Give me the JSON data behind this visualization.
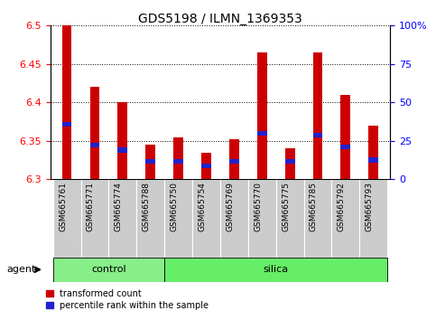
{
  "title": "GDS5198 / ILMN_1369353",
  "samples": [
    "GSM665761",
    "GSM665771",
    "GSM665774",
    "GSM665788",
    "GSM665750",
    "GSM665754",
    "GSM665769",
    "GSM665770",
    "GSM665775",
    "GSM665785",
    "GSM665792",
    "GSM665793"
  ],
  "groups": [
    "control",
    "control",
    "control",
    "control",
    "silica",
    "silica",
    "silica",
    "silica",
    "silica",
    "silica",
    "silica",
    "silica"
  ],
  "transformed_count": [
    6.5,
    6.42,
    6.4,
    6.345,
    6.355,
    6.335,
    6.352,
    6.465,
    6.34,
    6.465,
    6.41,
    6.37
  ],
  "percentile_rank": [
    6.372,
    6.344,
    6.338,
    6.323,
    6.323,
    6.317,
    6.323,
    6.36,
    6.323,
    6.357,
    6.342,
    6.325
  ],
  "ylim": [
    6.3,
    6.5
  ],
  "yticks_left": [
    6.3,
    6.35,
    6.4,
    6.45,
    6.5
  ],
  "yticks_right": [
    0,
    25,
    50,
    75,
    100
  ],
  "bar_color": "#cc0000",
  "dot_color": "#2222cc",
  "group_control_color": "#88ee88",
  "group_silica_color": "#66ee66",
  "sample_box_color": "#cccccc",
  "legend_red_label": "transformed count",
  "legend_blue_label": "percentile rank within the sample",
  "bar_width": 0.35,
  "title_fontsize": 10,
  "tick_fontsize": 8,
  "sample_fontsize": 6.5,
  "group_fontsize": 8,
  "legend_fontsize": 7
}
